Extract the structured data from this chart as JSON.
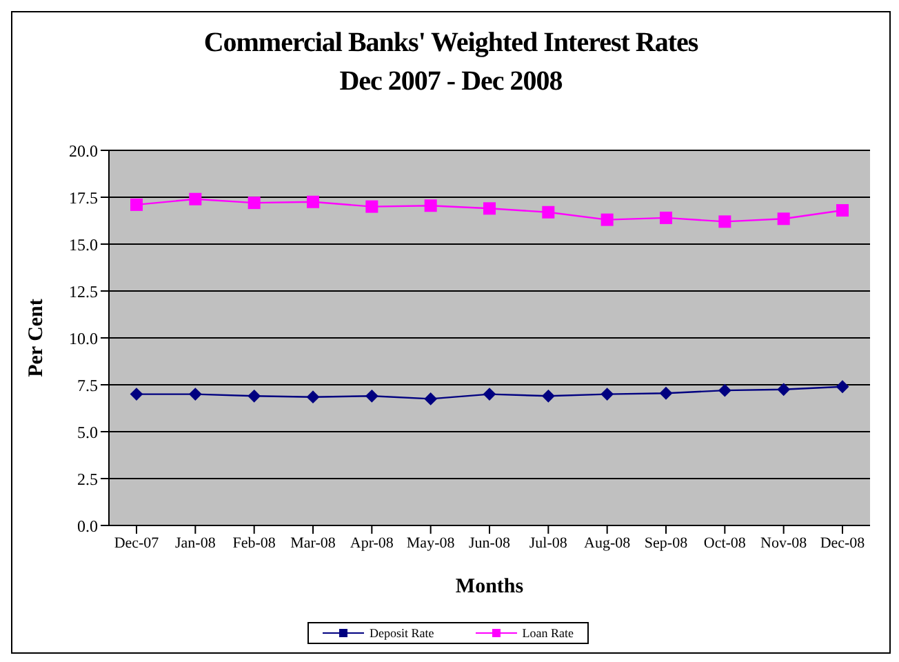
{
  "chart_data": {
    "type": "line",
    "title": "Commercial Banks' Weighted  Interest Rates\nDec 2007 - Dec 2008",
    "xlabel": "Months",
    "ylabel": "Per Cent",
    "categories": [
      "Dec-07",
      "Jan-08",
      "Feb-08",
      "Mar-08",
      "Apr-08",
      "May-08",
      "Jun-08",
      "Jul-08",
      "Aug-08",
      "Sep-08",
      "Oct-08",
      "Nov-08",
      "Dec-08"
    ],
    "series": [
      {
        "name": "Deposit Rate",
        "color": "#000080",
        "marker": "diamond",
        "values": [
          7.0,
          7.0,
          6.9,
          6.85,
          6.9,
          6.75,
          7.0,
          6.9,
          7.0,
          7.05,
          7.2,
          7.25,
          7.4
        ]
      },
      {
        "name": "Loan Rate",
        "color": "#ff00ff",
        "marker": "square",
        "values": [
          17.1,
          17.4,
          17.2,
          17.25,
          17.0,
          17.05,
          16.9,
          16.7,
          16.3,
          16.4,
          16.2,
          16.35,
          16.8
        ]
      }
    ],
    "ylim": [
      0,
      20
    ],
    "yticks": [
      {
        "value": 0,
        "label": "0.0"
      },
      {
        "value": 2.5,
        "label": "2.5"
      },
      {
        "value": 5,
        "label": "5.0"
      },
      {
        "value": 7.5,
        "label": "7.5"
      },
      {
        "value": 10,
        "label": "10.0"
      },
      {
        "value": 12.5,
        "label": "12.5"
      },
      {
        "value": 15,
        "label": "15.0"
      },
      {
        "value": 17.5,
        "label": "17.5"
      },
      {
        "value": 20,
        "label": "20.0"
      }
    ],
    "grid": "y",
    "legend": "bottom"
  }
}
